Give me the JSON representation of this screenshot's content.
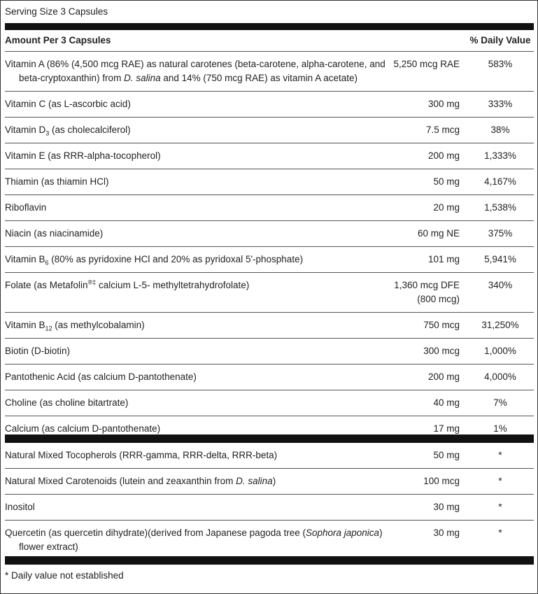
{
  "serving_size": "Serving Size 3 Capsules",
  "header": {
    "amount_label": "Amount Per 3 Capsules",
    "dv_label": "% Daily Value"
  },
  "sections": [
    {
      "rows": [
        {
          "name": [
            {
              "text": "Vitamin A (86% (4,500 mcg RAE) as natural carotenes (beta-carotene, alpha-carotene, and beta-cryptoxanthin) from "
            },
            {
              "text": "D. salina",
              "style": "italic"
            },
            {
              "text": " and 14% (750 mcg RAE) as vitamin A acetate)"
            }
          ],
          "amount": "5,250 mcg RAE",
          "dv": "583%"
        },
        {
          "name": [
            {
              "text": "Vitamin C (as L-ascorbic acid)"
            }
          ],
          "amount": "300 mg",
          "dv": "333%"
        },
        {
          "name": [
            {
              "text": "Vitamin D"
            },
            {
              "text": "3",
              "style": "sub"
            },
            {
              "text": " (as cholecalciferol)"
            }
          ],
          "amount": "7.5 mcg",
          "dv": "38%"
        },
        {
          "name": [
            {
              "text": "Vitamin E (as RRR-alpha-tocopherol)"
            }
          ],
          "amount": "200 mg",
          "dv": "1,333%"
        },
        {
          "name": [
            {
              "text": "Thiamin (as thiamin HCl)"
            }
          ],
          "amount": "50 mg",
          "dv": "4,167%"
        },
        {
          "name": [
            {
              "text": "Riboflavin"
            }
          ],
          "amount": "20 mg",
          "dv": "1,538%"
        },
        {
          "name": [
            {
              "text": "Niacin (as niacinamide)"
            }
          ],
          "amount": "60 mg NE",
          "dv": "375%"
        },
        {
          "name": [
            {
              "text": "Vitamin B"
            },
            {
              "text": "6",
              "style": "sub"
            },
            {
              "text": " (80% as pyridoxine HCl and 20% as pyridoxal 5'-phosphate)"
            }
          ],
          "amount": "101 mg",
          "dv": "5,941%"
        },
        {
          "name": [
            {
              "text": "Folate (as Metafolin"
            },
            {
              "text": "®‡",
              "style": "sup"
            },
            {
              "text": " calcium L-5- methyltetrahydrofolate)"
            }
          ],
          "amount": [
            "1,360 mcg DFE",
            "(800 mcg)"
          ],
          "dv": "340%"
        },
        {
          "name": [
            {
              "text": "Vitamin B"
            },
            {
              "text": "12",
              "style": "sub"
            },
            {
              "text": " (as methylcobalamin)"
            }
          ],
          "amount": "750 mcg",
          "dv": "31,250%"
        },
        {
          "name": [
            {
              "text": "Biotin (D-biotin)"
            }
          ],
          "amount": "300 mcg",
          "dv": "1,000%"
        },
        {
          "name": [
            {
              "text": "Pantothenic Acid (as calcium D-pantothenate)"
            }
          ],
          "amount": "200 mg",
          "dv": "4,000%"
        },
        {
          "name": [
            {
              "text": "Choline (as choline bitartrate)"
            }
          ],
          "amount": "40 mg",
          "dv": "7%"
        },
        {
          "name": [
            {
              "text": "Calcium (as calcium D-pantothenate)"
            }
          ],
          "amount": "17 mg",
          "dv": "1%"
        }
      ]
    },
    {
      "rows": [
        {
          "name": [
            {
              "text": "Natural Mixed Tocopherols (RRR-gamma, RRR-delta, RRR-beta)"
            }
          ],
          "amount": "50 mg",
          "dv": "*"
        },
        {
          "name": [
            {
              "text": "Natural Mixed Carotenoids (lutein and zeaxanthin from "
            },
            {
              "text": "D. salina",
              "style": "italic"
            },
            {
              "text": ")"
            }
          ],
          "amount": "100 mcg",
          "dv": "*"
        },
        {
          "name": [
            {
              "text": "Inositol"
            }
          ],
          "amount": "30 mg",
          "dv": "*"
        },
        {
          "name": [
            {
              "text": "Quercetin (as quercetin dihydrate)(derived from Japanese pagoda tree ("
            },
            {
              "text": "Sophora japonica",
              "style": "italic"
            },
            {
              "text": ") flower extract)"
            }
          ],
          "amount": "30 mg",
          "dv": "*"
        }
      ]
    }
  ],
  "footnote": "* Daily value not established"
}
